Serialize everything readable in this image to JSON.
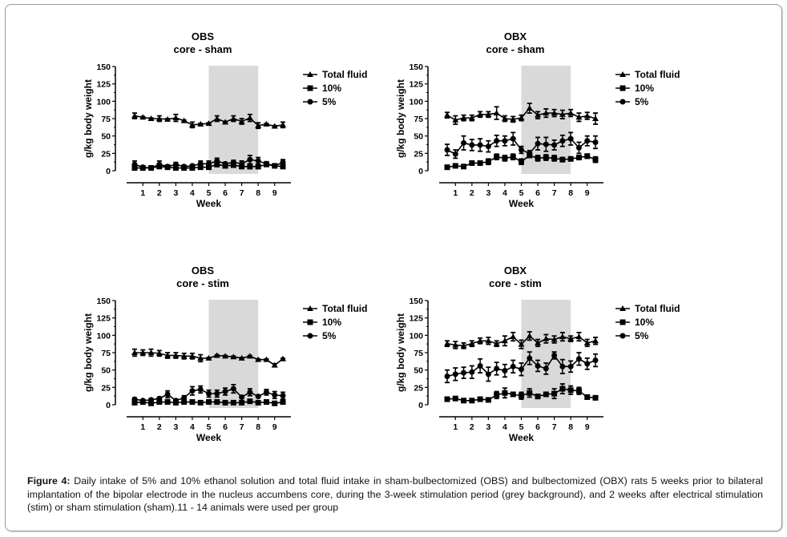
{
  "figure": {
    "caption_label": "Figure 4:",
    "caption_text": " Daily intake of 5% and 10% ethanol solution and total fluid intake in sham-bulbectomized (OBS) and bulbectomized (OBX) rats 5 weeks prior to bilateral implantation of the bipolar electrode in the nucleus accumbens core, during the 3-week stimulation period (grey background), and 2 weeks after electrical stimulation (stim) or sham stimulation (sham).11 - 14 animals were used per group"
  },
  "chart_data": [
    {
      "type": "line",
      "title": "OBS",
      "subtitle": "core - sham",
      "xlabel": "Week",
      "ylabel": "g/kg body weight",
      "ylim": [
        0,
        150
      ],
      "yticks": [
        "0",
        "25",
        "50",
        "75",
        "100",
        "125",
        "150"
      ],
      "xticks": [
        "1",
        "2",
        "3",
        "4",
        "5",
        "6",
        "7",
        "8",
        "9"
      ],
      "shaded_region": {
        "from_week": 5,
        "to_week": 8,
        "label": "stimulation period",
        "color": "#d9d9d9"
      },
      "legend_position": "right",
      "x": [
        0.5,
        1,
        1.5,
        2,
        2.5,
        3,
        3.5,
        4,
        4.5,
        5,
        5.5,
        6,
        6.5,
        7,
        7.5,
        8,
        8.5,
        9,
        9.5
      ],
      "series": [
        {
          "name": "Total fluid",
          "marker": "triangle",
          "values": [
            79,
            77,
            75,
            75,
            74,
            76,
            72,
            66,
            67,
            68,
            75,
            70,
            75,
            71,
            76,
            65,
            67,
            64,
            66
          ],
          "errors": [
            4,
            1,
            1,
            4,
            1,
            5,
            1,
            4,
            1,
            1,
            4,
            1,
            4,
            4,
            5,
            4,
            1,
            1,
            4
          ]
        },
        {
          "name": "10%",
          "marker": "square",
          "values": [
            4,
            4,
            4,
            6,
            5,
            4,
            4,
            4,
            5,
            5,
            9,
            7,
            8,
            6,
            6,
            6,
            9,
            7,
            6
          ],
          "errors": [
            2,
            1,
            1,
            2,
            1,
            1,
            2,
            2,
            2,
            2,
            3,
            2,
            2,
            2,
            3,
            3,
            2,
            1,
            2
          ]
        },
        {
          "name": "5%",
          "marker": "circle",
          "values": [
            9,
            5,
            4,
            9,
            6,
            9,
            6,
            7,
            10,
            10,
            14,
            10,
            12,
            10,
            16,
            14,
            10,
            7,
            12
          ],
          "errors": [
            5,
            1,
            1,
            5,
            1,
            3,
            2,
            2,
            4,
            4,
            4,
            2,
            3,
            4,
            6,
            5,
            3,
            1,
            4
          ]
        }
      ]
    },
    {
      "type": "line",
      "title": "OBX",
      "subtitle": "core - sham",
      "xlabel": "Week",
      "ylabel": "g/kg body weight",
      "ylim": [
        0,
        150
      ],
      "yticks": [
        "0",
        "25",
        "50",
        "75",
        "100",
        "125",
        "150"
      ],
      "xticks": [
        "1",
        "2",
        "3",
        "4",
        "5",
        "6",
        "7",
        "8",
        "9"
      ],
      "shaded_region": {
        "from_week": 5,
        "to_week": 8,
        "label": "stimulation period",
        "color": "#d9d9d9"
      },
      "legend_position": "right",
      "x": [
        0.5,
        1,
        1.5,
        2,
        2.5,
        3,
        3.5,
        4,
        4.5,
        5,
        5.5,
        6,
        6.5,
        7,
        7.5,
        8,
        8.5,
        9,
        9.5
      ],
      "series": [
        {
          "name": "Total fluid",
          "marker": "triangle",
          "values": [
            80,
            73,
            76,
            76,
            81,
            81,
            83,
            75,
            74,
            76,
            90,
            80,
            83,
            83,
            81,
            83,
            77,
            79,
            75
          ],
          "errors": [
            4,
            6,
            4,
            4,
            4,
            4,
            9,
            4,
            4,
            4,
            7,
            5,
            6,
            5,
            6,
            5,
            6,
            5,
            8
          ]
        },
        {
          "name": "10%",
          "marker": "square",
          "values": [
            5,
            7,
            6,
            11,
            11,
            13,
            20,
            18,
            20,
            13,
            22,
            18,
            19,
            18,
            16,
            17,
            19,
            21,
            16
          ],
          "errors": [
            1,
            1,
            1,
            2,
            2,
            4,
            4,
            4,
            4,
            4,
            3,
            4,
            4,
            4,
            3,
            2,
            3,
            3,
            4
          ]
        },
        {
          "name": "5%",
          "marker": "circle",
          "values": [
            30,
            24,
            40,
            37,
            37,
            35,
            43,
            43,
            46,
            30,
            25,
            39,
            38,
            37,
            43,
            46,
            33,
            43,
            41
          ],
          "errors": [
            8,
            6,
            10,
            8,
            9,
            8,
            8,
            7,
            9,
            5,
            4,
            9,
            10,
            7,
            8,
            9,
            8,
            7,
            9
          ]
        }
      ]
    },
    {
      "type": "line",
      "title": "OBS",
      "subtitle": "core - stim",
      "xlabel": "Week",
      "ylabel": "g/kg body weight",
      "ylim": [
        0,
        150
      ],
      "yticks": [
        "0",
        "25",
        "50",
        "75",
        "100",
        "125",
        "150"
      ],
      "xticks": [
        "1",
        "2",
        "3",
        "4",
        "5",
        "6",
        "7",
        "8",
        "9"
      ],
      "shaded_region": {
        "from_week": 5,
        "to_week": 8,
        "label": "stimulation period",
        "color": "#d9d9d9"
      },
      "legend_position": "right",
      "x": [
        0.5,
        1,
        1.5,
        2,
        2.5,
        3,
        3.5,
        4,
        4.5,
        5,
        5.5,
        6,
        6.5,
        7,
        7.5,
        8,
        8.5,
        9,
        9.5
      ],
      "series": [
        {
          "name": "Total fluid",
          "marker": "triangle",
          "values": [
            75,
            75,
            75,
            74,
            71,
            71,
            70,
            70,
            67,
            67,
            71,
            70,
            69,
            67,
            70,
            65,
            65,
            57,
            66
          ],
          "errors": [
            5,
            4,
            5,
            4,
            4,
            4,
            4,
            4,
            5,
            1,
            1,
            1,
            1,
            1,
            1,
            1,
            1,
            2,
            1
          ]
        },
        {
          "name": "10%",
          "marker": "square",
          "values": [
            3,
            4,
            2,
            4,
            4,
            3,
            4,
            4,
            3,
            4,
            4,
            3,
            3,
            3,
            5,
            3,
            4,
            2,
            4
          ],
          "errors": [
            1,
            1,
            2,
            1,
            1,
            1,
            1,
            1,
            1,
            1,
            1,
            1,
            1,
            1,
            1,
            1,
            1,
            2,
            2
          ]
        },
        {
          "name": "5%",
          "marker": "circle",
          "values": [
            8,
            6,
            7,
            9,
            15,
            6,
            10,
            20,
            22,
            16,
            16,
            19,
            23,
            11,
            18,
            12,
            18,
            14,
            13
          ],
          "errors": [
            2,
            1,
            2,
            2,
            5,
            2,
            3,
            6,
            5,
            5,
            5,
            5,
            6,
            1,
            5,
            1,
            4,
            5,
            5
          ]
        }
      ]
    },
    {
      "type": "line",
      "title": "OBX",
      "subtitle": "core - stim",
      "xlabel": "Week",
      "ylabel": "g/kg body weight",
      "ylim": [
        0,
        150
      ],
      "yticks": [
        "0",
        "25",
        "50",
        "75",
        "100",
        "125",
        "150"
      ],
      "xticks": [
        "1",
        "2",
        "3",
        "4",
        "5",
        "6",
        "7",
        "8",
        "9"
      ],
      "shaded_region": {
        "from_week": 5,
        "to_week": 8,
        "label": "stimulation period",
        "color": "#d9d9d9"
      },
      "legend_position": "right",
      "x": [
        0.5,
        1,
        1.5,
        2,
        2.5,
        3,
        3.5,
        4,
        4.5,
        5,
        5.5,
        6,
        6.5,
        7,
        7.5,
        8,
        8.5,
        9,
        9.5
      ],
      "series": [
        {
          "name": "Total fluid",
          "marker": "triangle",
          "values": [
            88,
            86,
            85,
            88,
            92,
            92,
            88,
            92,
            98,
            87,
            99,
            89,
            95,
            94,
            98,
            95,
            98,
            89,
            92
          ],
          "errors": [
            4,
            5,
            4,
            4,
            4,
            5,
            4,
            7,
            6,
            6,
            6,
            5,
            6,
            5,
            6,
            4,
            6,
            5,
            5
          ]
        },
        {
          "name": "10%",
          "marker": "square",
          "values": [
            8,
            9,
            6,
            6,
            8,
            7,
            14,
            17,
            15,
            13,
            17,
            12,
            15,
            16,
            23,
            21,
            20,
            11,
            10
          ],
          "errors": [
            1,
            1,
            1,
            1,
            1,
            1,
            5,
            7,
            3,
            5,
            6,
            3,
            3,
            7,
            7,
            6,
            5,
            1,
            1
          ]
        },
        {
          "name": "5%",
          "marker": "circle",
          "values": [
            41,
            44,
            46,
            47,
            56,
            44,
            52,
            49,
            55,
            51,
            67,
            56,
            52,
            71,
            55,
            55,
            66,
            59,
            64
          ],
          "errors": [
            9,
            9,
            8,
            9,
            10,
            10,
            9,
            9,
            9,
            9,
            9,
            8,
            8,
            5,
            10,
            8,
            9,
            8,
            9
          ]
        }
      ]
    }
  ]
}
